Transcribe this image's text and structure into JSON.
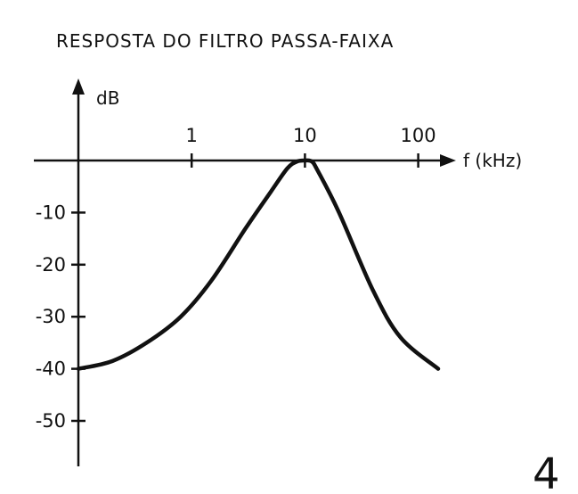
{
  "chart_data": {
    "type": "line",
    "title": "RESPOSTA DO FILTRO PASSA-FAIXA",
    "xlabel": "f (kHz)",
    "ylabel": "dB",
    "x_scale": "log",
    "xlim": [
      0.1,
      200
    ],
    "ylim": [
      -60,
      10
    ],
    "x_ticks": [
      {
        "value": 1,
        "label": "1"
      },
      {
        "value": 10,
        "label": "10"
      },
      {
        "value": 100,
        "label": "100"
      }
    ],
    "y_ticks": [
      {
        "value": -10,
        "label": "-10"
      },
      {
        "value": -20,
        "label": "-20"
      },
      {
        "value": -30,
        "label": "-30"
      },
      {
        "value": -40,
        "label": "-40"
      },
      {
        "value": -50,
        "label": "-50"
      }
    ],
    "grid": false,
    "series": [
      {
        "x": [
          0.1,
          0.2,
          0.4,
          0.8,
          1.5,
          3,
          5,
          7,
          8.5,
          10,
          11.5,
          13,
          20,
          40,
          70,
          150
        ],
        "y": [
          -40,
          -38.5,
          -35,
          -30,
          -23,
          -13,
          -6,
          -1.5,
          -0.2,
          0,
          -0.2,
          -2,
          -10,
          -25,
          -34,
          -40
        ]
      }
    ]
  },
  "figure_number": "4",
  "colors": {
    "ink": "#111111",
    "background": "#ffffff"
  }
}
